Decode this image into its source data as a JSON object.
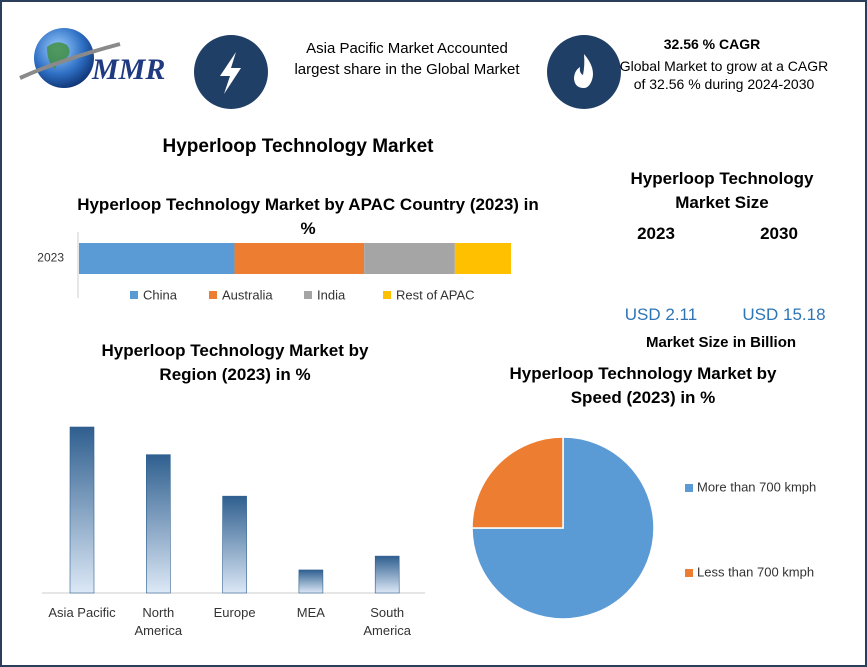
{
  "header": {
    "logo": "MMR",
    "highlight": "Asia Pacific Market Accounted largest share in the Global Market",
    "cagr_title": "32.56 % CAGR",
    "cagr_text": "Global Market to grow at a CAGR of 32.56 % during 2024-2030"
  },
  "title": "Hyperloop Technology Market",
  "market_size": {
    "title": "Hyperloop Technology Market Size",
    "years": [
      "2023",
      "2030"
    ],
    "values": [
      "USD 2.11",
      "USD 15.18"
    ],
    "unit": "Market Size in Billion"
  },
  "chart_data": [
    {
      "type": "stackedbar",
      "title": "Hyperloop Technology Market by APAC Country (2023) in %",
      "categories": [
        "2023"
      ],
      "series": [
        {
          "name": "China",
          "color": "#5b9bd5",
          "values": [
            36
          ]
        },
        {
          "name": "Australia",
          "color": "#ed7d31",
          "values": [
            30
          ]
        },
        {
          "name": "India",
          "color": "#a5a5a5",
          "values": [
            21
          ]
        },
        {
          "name": "Rest of APAC",
          "color": "#ffc000",
          "values": [
            13
          ]
        }
      ],
      "legend": "bottom"
    },
    {
      "type": "bar",
      "title": "Hyperloop Technology Market by Region (2023) in %",
      "categories": [
        "Asia Pacific",
        "North America",
        "Europe",
        "MEA",
        "South America"
      ],
      "values": [
        36,
        30,
        21,
        5,
        8
      ],
      "color": "#2f5f8f"
    },
    {
      "type": "pie",
      "title": "Hyperloop Technology Market by Speed (2023) in %",
      "categories": [
        "More than 700 kmph",
        "Less than 700 kmph"
      ],
      "values": [
        75,
        25
      ],
      "colors": [
        "#5b9bd5",
        "#ed7d31"
      ],
      "legend": "right"
    }
  ]
}
